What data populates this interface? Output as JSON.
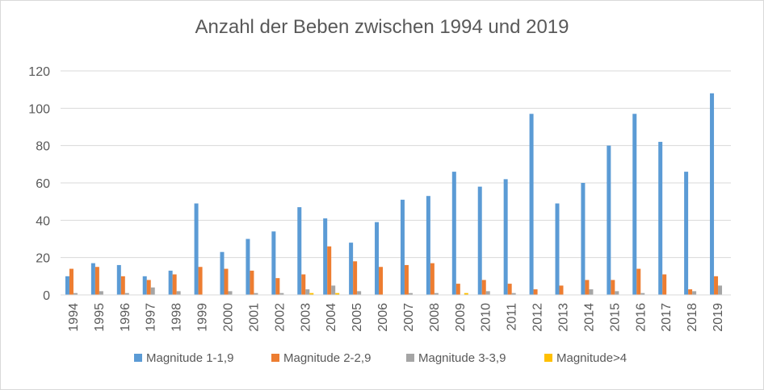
{
  "chart_data": {
    "type": "bar",
    "title": "Anzahl der Beben zwischen 1994 und 2019",
    "categories": [
      "1994",
      "1995",
      "1996",
      "1997",
      "1998",
      "1999",
      "2000",
      "2001",
      "2002",
      "2003",
      "2004",
      "2005",
      "2006",
      "2007",
      "2008",
      "2009",
      "2010",
      "2011",
      "2012",
      "2013",
      "2014",
      "2015",
      "2016",
      "2017",
      "2018",
      "2019"
    ],
    "series": [
      {
        "name": "Magnitude 1-1,9",
        "color": "#5b9bd5",
        "values": [
          10,
          17,
          16,
          10,
          13,
          49,
          23,
          30,
          34,
          47,
          41,
          28,
          39,
          51,
          53,
          66,
          58,
          62,
          97,
          49,
          60,
          80,
          97,
          82,
          66,
          108
        ]
      },
      {
        "name": "Magnitude 2-2,9",
        "color": "#ed7d31",
        "values": [
          14,
          15,
          10,
          8,
          11,
          15,
          14,
          13,
          9,
          11,
          26,
          18,
          15,
          16,
          17,
          6,
          8,
          6,
          3,
          5,
          8,
          8,
          14,
          11,
          3,
          10
        ]
      },
      {
        "name": "Magnitude 3-3,9",
        "color": "#a5a5a5",
        "values": [
          1,
          2,
          1,
          4,
          2,
          0,
          2,
          1,
          1,
          3,
          5,
          2,
          0,
          1,
          1,
          0,
          2,
          1,
          0,
          0,
          3,
          2,
          1,
          0,
          2,
          5
        ]
      },
      {
        "name": "Magnitude>4",
        "color": "#ffc000",
        "values": [
          0,
          0,
          0,
          0,
          0,
          0,
          0,
          0,
          0,
          1,
          1,
          0,
          0,
          0,
          0,
          1,
          0,
          0,
          0,
          0,
          0,
          0,
          0,
          0,
          0,
          0
        ]
      }
    ],
    "yticks": [
      "0",
      "20",
      "40",
      "60",
      "80",
      "100",
      "120"
    ],
    "ylim": [
      0,
      120
    ],
    "grid": true,
    "legend": "bottom"
  }
}
